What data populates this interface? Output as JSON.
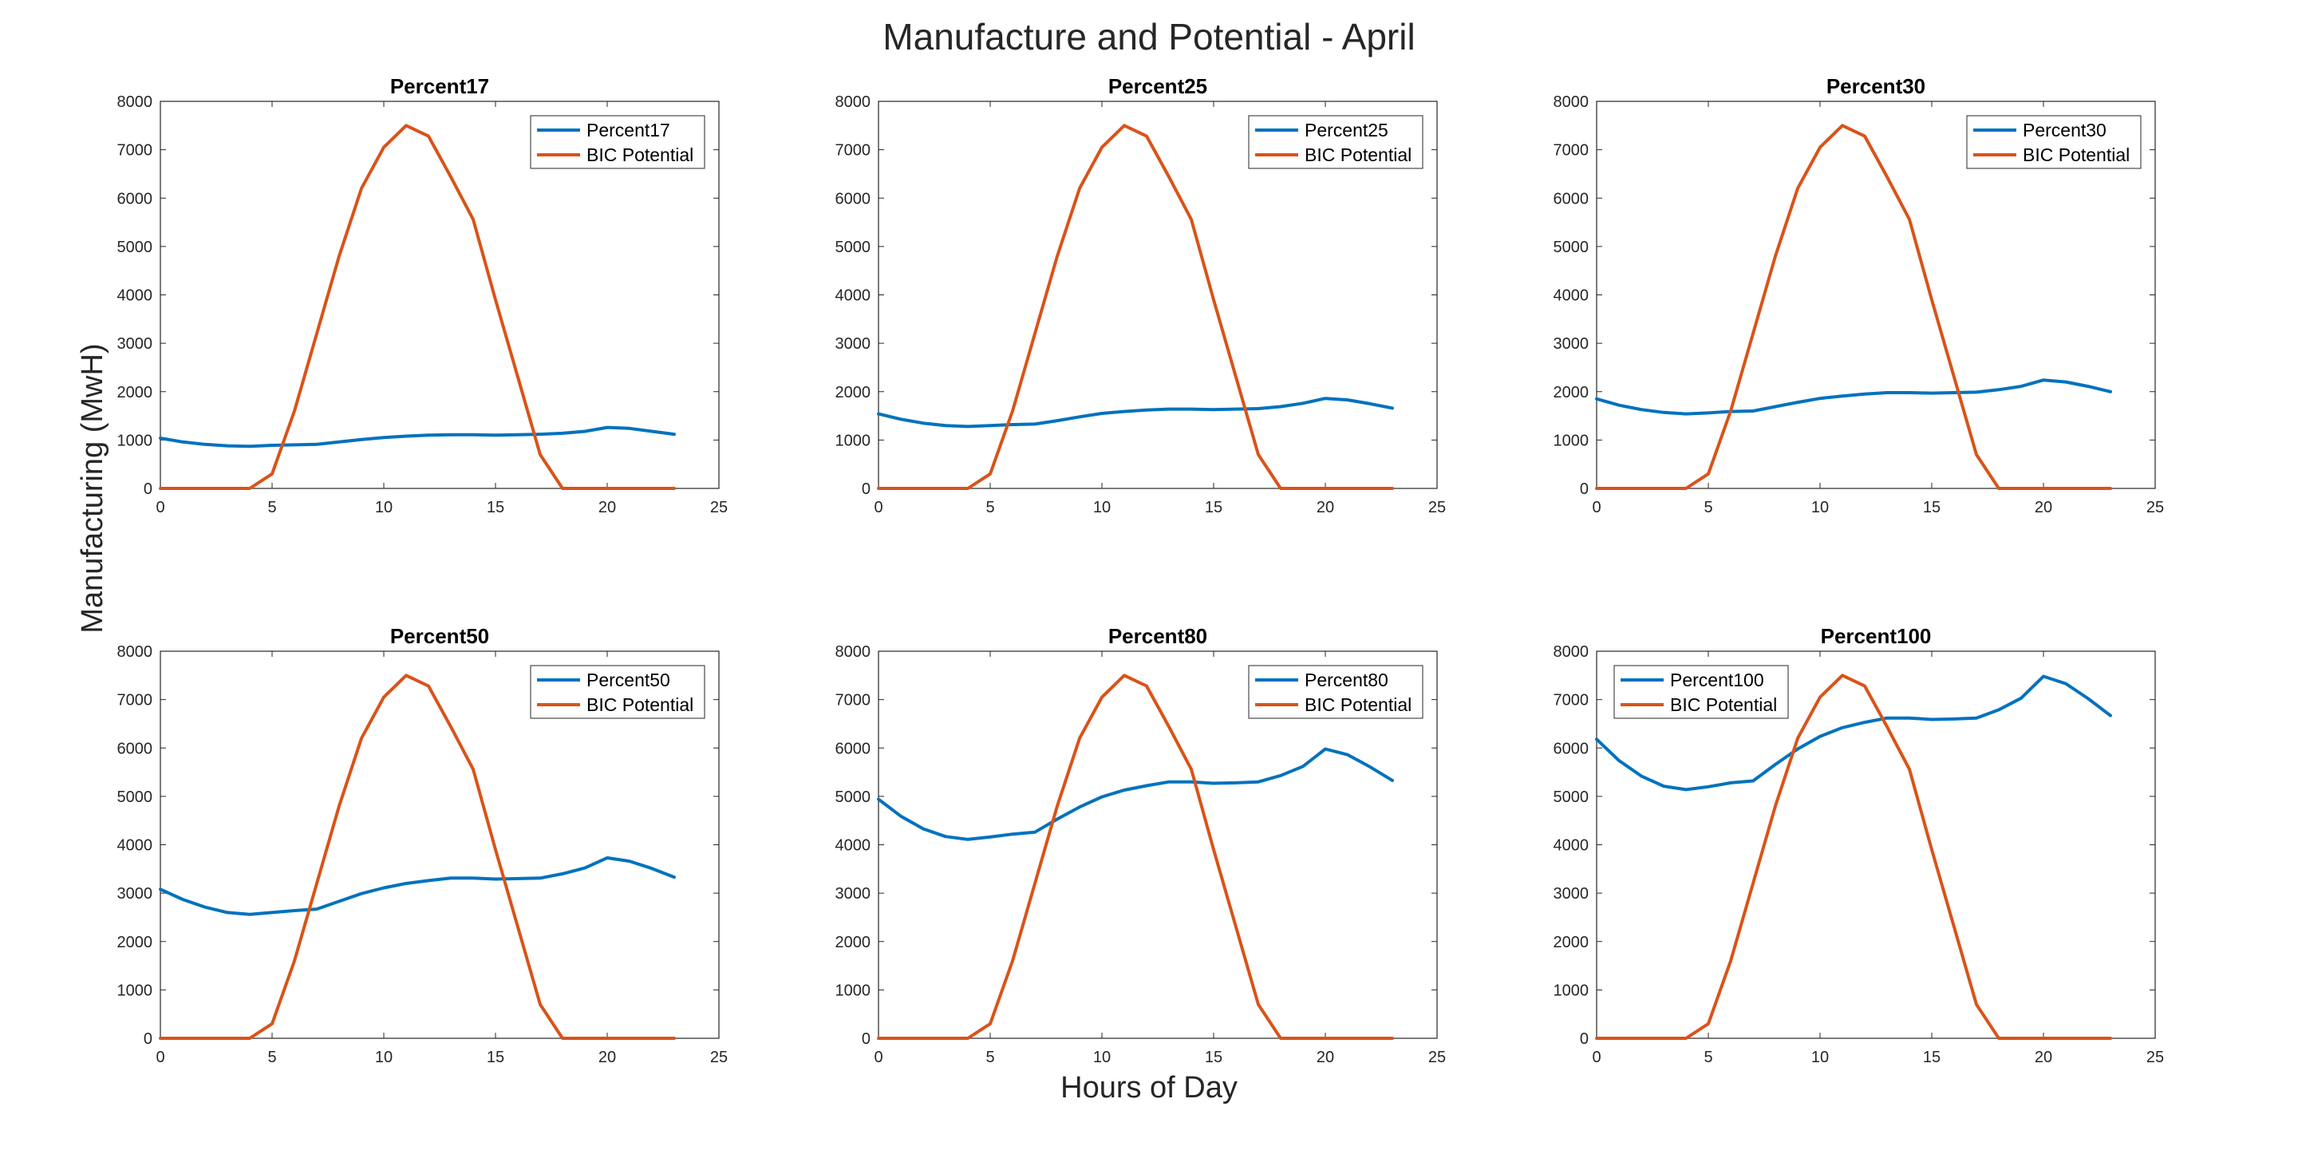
{
  "figure": {
    "title": "Manufacture and Potential - April",
    "xlabel": "Hours of Day",
    "ylabel": "Manufacturing (MwH)"
  },
  "colors": {
    "series_main": "#0072BD",
    "series_potential": "#D95319"
  },
  "chart_data": [
    {
      "type": "line",
      "title": "Percent17",
      "xlim": [
        0,
        25
      ],
      "ylim": [
        0,
        8000
      ],
      "xticks": [
        "0",
        "5",
        "10",
        "15",
        "20",
        "25"
      ],
      "yticks": [
        "0",
        "1000",
        "2000",
        "3000",
        "4000",
        "5000",
        "6000",
        "7000",
        "8000"
      ],
      "legend": "top-right",
      "x": [
        0,
        1,
        2,
        3,
        4,
        5,
        6,
        7,
        8,
        9,
        10,
        11,
        12,
        13,
        14,
        15,
        16,
        17,
        18,
        19,
        20,
        21,
        22,
        23
      ],
      "series": [
        {
          "name": "Percent17",
          "values": [
            1040,
            960,
            910,
            880,
            870,
            890,
            900,
            910,
            960,
            1010,
            1050,
            1080,
            1100,
            1110,
            1110,
            1100,
            1110,
            1120,
            1140,
            1180,
            1260,
            1240,
            1180,
            1120
          ]
        },
        {
          "name": "BIC Potential",
          "values": [
            0,
            0,
            0,
            0,
            0,
            300,
            1600,
            3200,
            4800,
            6200,
            7050,
            7500,
            7280,
            6440,
            5560,
            3900,
            2300,
            700,
            0,
            0,
            0,
            0,
            0,
            0
          ]
        }
      ]
    },
    {
      "type": "line",
      "title": "Percent25",
      "xlim": [
        0,
        25
      ],
      "ylim": [
        0,
        8000
      ],
      "xticks": [
        "0",
        "5",
        "10",
        "15",
        "20",
        "25"
      ],
      "yticks": [
        "0",
        "1000",
        "2000",
        "3000",
        "4000",
        "5000",
        "6000",
        "7000",
        "8000"
      ],
      "legend": "top-right",
      "x": [
        0,
        1,
        2,
        3,
        4,
        5,
        6,
        7,
        8,
        9,
        10,
        11,
        12,
        13,
        14,
        15,
        16,
        17,
        18,
        19,
        20,
        21,
        22,
        23
      ],
      "series": [
        {
          "name": "Percent25",
          "values": [
            1540,
            1430,
            1350,
            1300,
            1280,
            1300,
            1320,
            1330,
            1400,
            1480,
            1550,
            1590,
            1620,
            1640,
            1640,
            1630,
            1640,
            1650,
            1690,
            1760,
            1860,
            1830,
            1750,
            1660
          ]
        },
        {
          "name": "BIC Potential",
          "values": [
            0,
            0,
            0,
            0,
            0,
            300,
            1600,
            3200,
            4800,
            6200,
            7050,
            7500,
            7280,
            6440,
            5560,
            3900,
            2300,
            700,
            0,
            0,
            0,
            0,
            0,
            0
          ]
        }
      ]
    },
    {
      "type": "line",
      "title": "Percent30",
      "xlim": [
        0,
        25
      ],
      "ylim": [
        0,
        8000
      ],
      "xticks": [
        "0",
        "5",
        "10",
        "15",
        "20",
        "25"
      ],
      "yticks": [
        "0",
        "1000",
        "2000",
        "3000",
        "4000",
        "5000",
        "6000",
        "7000",
        "8000"
      ],
      "legend": "top-right",
      "x": [
        0,
        1,
        2,
        3,
        4,
        5,
        6,
        7,
        8,
        9,
        10,
        11,
        12,
        13,
        14,
        15,
        16,
        17,
        18,
        19,
        20,
        21,
        22,
        23
      ],
      "series": [
        {
          "name": "Percent30",
          "values": [
            1850,
            1720,
            1630,
            1570,
            1540,
            1560,
            1590,
            1600,
            1690,
            1780,
            1860,
            1910,
            1950,
            1980,
            1980,
            1970,
            1980,
            1990,
            2040,
            2110,
            2240,
            2200,
            2110,
            2000
          ]
        },
        {
          "name": "BIC Potential",
          "values": [
            0,
            0,
            0,
            0,
            0,
            300,
            1600,
            3200,
            4800,
            6200,
            7050,
            7500,
            7280,
            6440,
            5560,
            3900,
            2300,
            700,
            0,
            0,
            0,
            0,
            0,
            0
          ]
        }
      ]
    },
    {
      "type": "line",
      "title": "Percent50",
      "xlim": [
        0,
        25
      ],
      "ylim": [
        0,
        8000
      ],
      "xticks": [
        "0",
        "5",
        "10",
        "15",
        "20",
        "25"
      ],
      "yticks": [
        "0",
        "1000",
        "2000",
        "3000",
        "4000",
        "5000",
        "6000",
        "7000",
        "8000"
      ],
      "legend": "top-right",
      "x": [
        0,
        1,
        2,
        3,
        4,
        5,
        6,
        7,
        8,
        9,
        10,
        11,
        12,
        13,
        14,
        15,
        16,
        17,
        18,
        19,
        20,
        21,
        22,
        23
      ],
      "series": [
        {
          "name": "Percent50",
          "values": [
            3080,
            2870,
            2710,
            2600,
            2560,
            2600,
            2640,
            2670,
            2830,
            2990,
            3110,
            3200,
            3260,
            3310,
            3310,
            3290,
            3300,
            3310,
            3400,
            3520,
            3730,
            3660,
            3510,
            3330
          ]
        },
        {
          "name": "BIC Potential",
          "values": [
            0,
            0,
            0,
            0,
            0,
            300,
            1600,
            3200,
            4800,
            6200,
            7050,
            7500,
            7280,
            6440,
            5560,
            3900,
            2300,
            700,
            0,
            0,
            0,
            0,
            0,
            0
          ]
        }
      ]
    },
    {
      "type": "line",
      "title": "Percent80",
      "xlim": [
        0,
        25
      ],
      "ylim": [
        0,
        8000
      ],
      "xticks": [
        "0",
        "5",
        "10",
        "15",
        "20",
        "25"
      ],
      "yticks": [
        "0",
        "1000",
        "2000",
        "3000",
        "4000",
        "5000",
        "6000",
        "7000",
        "8000"
      ],
      "legend": "top-right",
      "x": [
        0,
        1,
        2,
        3,
        4,
        5,
        6,
        7,
        8,
        9,
        10,
        11,
        12,
        13,
        14,
        15,
        16,
        17,
        18,
        19,
        20,
        21,
        22,
        23
      ],
      "series": [
        {
          "name": "Percent80",
          "values": [
            4940,
            4590,
            4330,
            4170,
            4110,
            4160,
            4220,
            4260,
            4530,
            4780,
            4990,
            5130,
            5220,
            5300,
            5300,
            5270,
            5280,
            5300,
            5430,
            5620,
            5980,
            5860,
            5610,
            5330
          ]
        },
        {
          "name": "BIC Potential",
          "values": [
            0,
            0,
            0,
            0,
            0,
            300,
            1600,
            3200,
            4800,
            6200,
            7050,
            7500,
            7280,
            6440,
            5560,
            3900,
            2300,
            700,
            0,
            0,
            0,
            0,
            0,
            0
          ]
        }
      ]
    },
    {
      "type": "line",
      "title": "Percent100",
      "xlim": [
        0,
        25
      ],
      "ylim": [
        0,
        8000
      ],
      "xticks": [
        "0",
        "5",
        "10",
        "15",
        "20",
        "25"
      ],
      "yticks": [
        "0",
        "1000",
        "2000",
        "3000",
        "4000",
        "5000",
        "6000",
        "7000",
        "8000"
      ],
      "legend": "top-left",
      "x": [
        0,
        1,
        2,
        3,
        4,
        5,
        6,
        7,
        8,
        9,
        10,
        11,
        12,
        13,
        14,
        15,
        16,
        17,
        18,
        19,
        20,
        21,
        22,
        23
      ],
      "series": [
        {
          "name": "Percent100",
          "values": [
            6180,
            5740,
            5420,
            5210,
            5140,
            5200,
            5280,
            5320,
            5660,
            5980,
            6240,
            6420,
            6530,
            6620,
            6620,
            6590,
            6600,
            6620,
            6790,
            7030,
            7480,
            7330,
            7020,
            6670
          ]
        },
        {
          "name": "BIC Potential",
          "values": [
            0,
            0,
            0,
            0,
            0,
            300,
            1600,
            3200,
            4800,
            6200,
            7050,
            7500,
            7280,
            6440,
            5560,
            3900,
            2300,
            700,
            0,
            0,
            0,
            0,
            0,
            0
          ]
        }
      ]
    }
  ]
}
